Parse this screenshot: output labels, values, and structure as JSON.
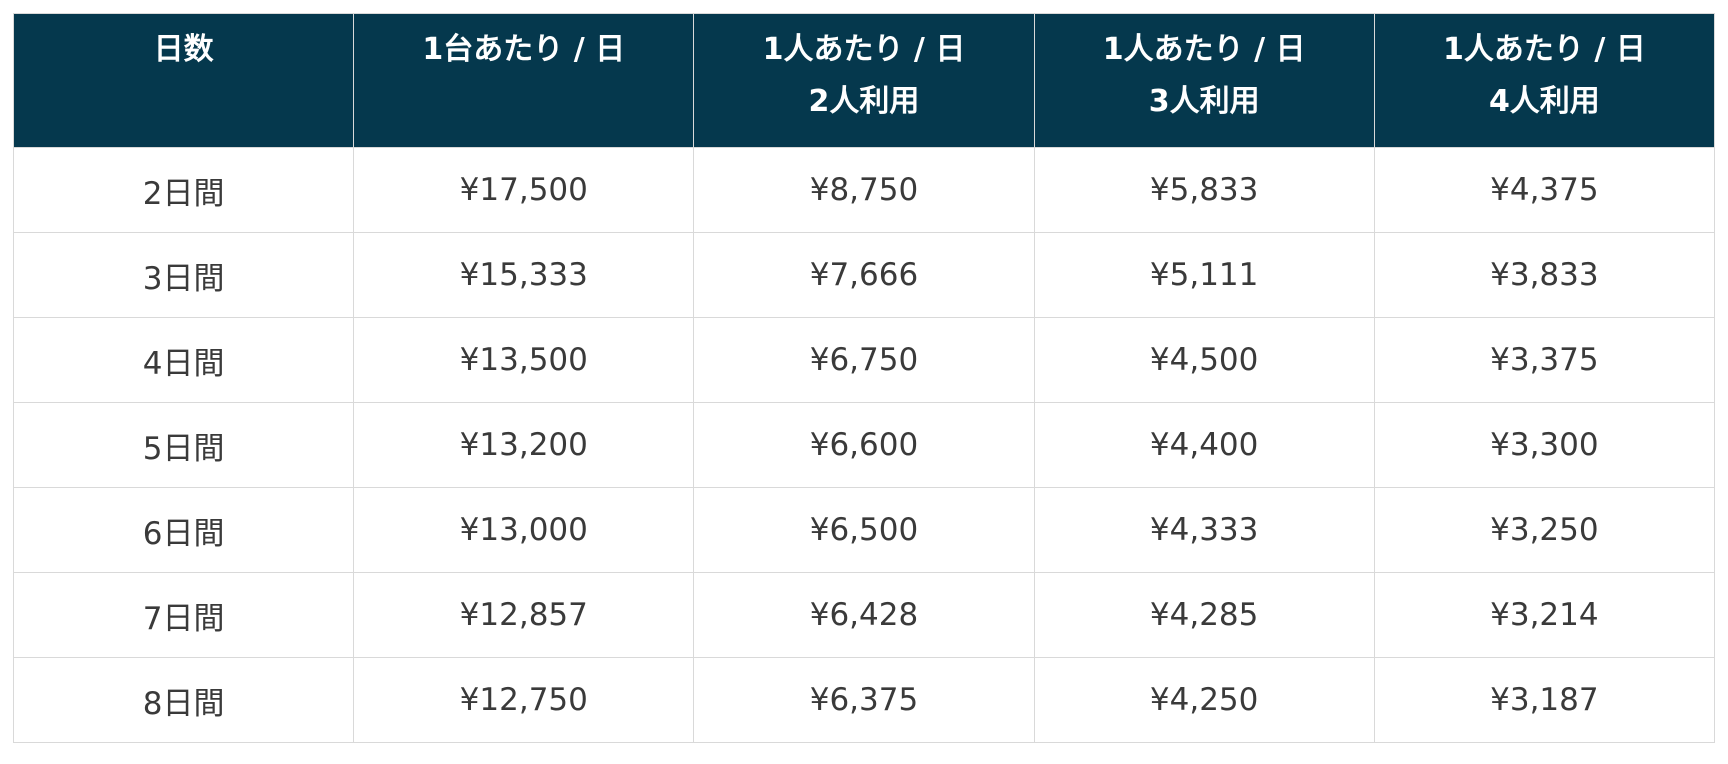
{
  "table": {
    "headers": [
      {
        "line1": "日数",
        "line2": ""
      },
      {
        "line1": "1台あたり / 日",
        "line2": ""
      },
      {
        "line1": "1人あたり / 日",
        "line2": "2人利用"
      },
      {
        "line1": "1人あたり / 日",
        "line2": "3人利用"
      },
      {
        "line1": "1人あたり / 日",
        "line2": "4人利用"
      }
    ],
    "rows": [
      [
        "2日間",
        "¥17,500",
        "¥8,750",
        "¥5,833",
        "¥4,375"
      ],
      [
        "3日間",
        "¥15,333",
        "¥7,666",
        "¥5,111",
        "¥3,833"
      ],
      [
        "4日間",
        "¥13,500",
        "¥6,750",
        "¥4,500",
        "¥3,375"
      ],
      [
        "5日間",
        "¥13,200",
        "¥6,600",
        "¥4,400",
        "¥3,300"
      ],
      [
        "6日間",
        "¥13,000",
        "¥6,500",
        "¥4,333",
        "¥3,250"
      ],
      [
        "7日間",
        "¥12,857",
        "¥6,428",
        "¥4,285",
        "¥3,214"
      ],
      [
        "8日間",
        "¥12,750",
        "¥6,375",
        "¥4,250",
        "¥3,187"
      ]
    ]
  },
  "colors": {
    "header_bg": "#05384d",
    "header_text": "#ffffff",
    "cell_text": "#3a3a3a",
    "border": "#d9d9d9"
  }
}
